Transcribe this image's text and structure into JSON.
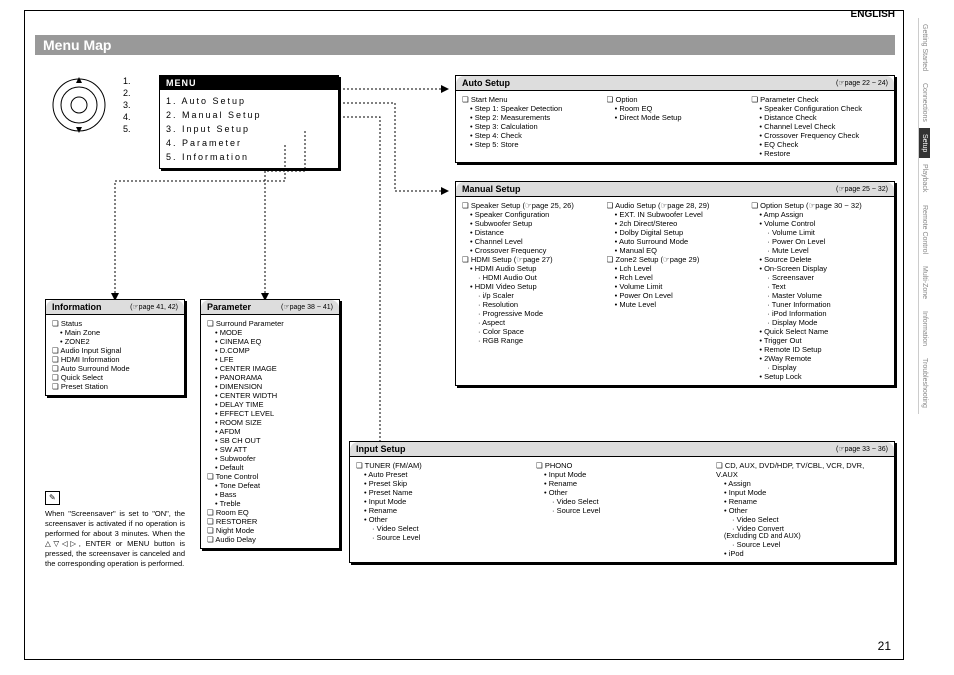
{
  "header": {
    "language": "ENGLISH",
    "title": "Menu Map",
    "page_number": "21"
  },
  "dial_numbers": [
    "1.",
    "2.",
    "3.",
    "4.",
    "5."
  ],
  "menu_box": {
    "header": "MENU",
    "items": [
      "1. Auto Setup",
      "2. Manual Setup",
      "3. Input Setup",
      "4. Parameter",
      "5. Information"
    ]
  },
  "cards": {
    "auto": {
      "title": "Auto Setup",
      "page": "(☞page 22 ~ 24)",
      "cols": [
        [
          {
            "t": "sq",
            "v": "Start Menu"
          },
          {
            "t": "b1",
            "v": "Step 1: Speaker Detection"
          },
          {
            "t": "b1",
            "v": "Step 2: Measurements"
          },
          {
            "t": "b1",
            "v": "Step 3: Calculation"
          },
          {
            "t": "b1",
            "v": "Step 4: Check"
          },
          {
            "t": "b1",
            "v": "Step 5: Store"
          }
        ],
        [
          {
            "t": "sq",
            "v": "Option"
          },
          {
            "t": "b1",
            "v": "Room EQ"
          },
          {
            "t": "b1",
            "v": "Direct Mode Setup"
          }
        ],
        [
          {
            "t": "sq",
            "v": "Parameter Check"
          },
          {
            "t": "b1",
            "v": "Speaker Configuration Check"
          },
          {
            "t": "b1",
            "v": "Distance Check"
          },
          {
            "t": "b1",
            "v": "Channel Level Check"
          },
          {
            "t": "b1",
            "v": "Crossover Frequency Check"
          },
          {
            "t": "b1",
            "v": "EQ Check"
          },
          {
            "t": "b1",
            "v": "Restore"
          }
        ]
      ]
    },
    "manual": {
      "title": "Manual Setup",
      "page": "(☞page 25 ~ 32)",
      "cols": [
        [
          {
            "t": "sq",
            "v": "Speaker Setup (☞page 25, 26)"
          },
          {
            "t": "b1",
            "v": "Speaker Configuration"
          },
          {
            "t": "b1",
            "v": "Subwoofer Setup"
          },
          {
            "t": "b1",
            "v": "Distance"
          },
          {
            "t": "b1",
            "v": "Channel Level"
          },
          {
            "t": "b1",
            "v": "Crossover Frequency"
          },
          {
            "t": "sq",
            "v": "HDMI Setup (☞page 27)"
          },
          {
            "t": "b1",
            "v": "HDMI Audio Setup"
          },
          {
            "t": "b2",
            "v": "HDMI Audio Out"
          },
          {
            "t": "b1",
            "v": "HDMI Video Setup"
          },
          {
            "t": "b2",
            "v": "i/p Scaler"
          },
          {
            "t": "b2",
            "v": "Resolution"
          },
          {
            "t": "b2",
            "v": "Progressive Mode"
          },
          {
            "t": "b2",
            "v": "Aspect"
          },
          {
            "t": "b2",
            "v": "Color Space"
          },
          {
            "t": "b2",
            "v": "RGB Range"
          }
        ],
        [
          {
            "t": "sq",
            "v": "Audio Setup (☞page 28, 29)"
          },
          {
            "t": "b1",
            "v": "EXT. IN Subwoofer Level"
          },
          {
            "t": "b1",
            "v": "2ch Direct/Stereo"
          },
          {
            "t": "b1",
            "v": "Dolby Digital Setup"
          },
          {
            "t": "b1",
            "v": "Auto Surround Mode"
          },
          {
            "t": "b1",
            "v": "Manual EQ"
          },
          {
            "t": "sq",
            "v": "Zone2 Setup (☞page 29)"
          },
          {
            "t": "b1",
            "v": "Lch Level"
          },
          {
            "t": "b1",
            "v": "Rch Level"
          },
          {
            "t": "b1",
            "v": "Volume Limit"
          },
          {
            "t": "b1",
            "v": "Power On Level"
          },
          {
            "t": "b1",
            "v": "Mute Level"
          }
        ],
        [
          {
            "t": "sq",
            "v": "Option Setup (☞page 30 ~ 32)"
          },
          {
            "t": "b1",
            "v": "Amp Assign"
          },
          {
            "t": "b1",
            "v": "Volume Control"
          },
          {
            "t": "b2",
            "v": "Volume Limit"
          },
          {
            "t": "b2",
            "v": "Power On Level"
          },
          {
            "t": "b2",
            "v": "Mute Level"
          },
          {
            "t": "b1",
            "v": "Source Delete"
          },
          {
            "t": "b1",
            "v": "On-Screen Display"
          },
          {
            "t": "b2",
            "v": "Screensaver"
          },
          {
            "t": "b2",
            "v": "Text"
          },
          {
            "t": "b2",
            "v": "Master Volume"
          },
          {
            "t": "b2",
            "v": "Tuner Information"
          },
          {
            "t": "b2",
            "v": "iPod Information"
          },
          {
            "t": "b2",
            "v": "Display Mode"
          },
          {
            "t": "b1",
            "v": "Quick Select Name"
          },
          {
            "t": "b1",
            "v": "Trigger Out"
          },
          {
            "t": "b1",
            "v": "Remote ID Setup"
          },
          {
            "t": "b1",
            "v": "2Way Remote"
          },
          {
            "t": "b2",
            "v": "Display"
          },
          {
            "t": "b1",
            "v": "Setup Lock"
          }
        ]
      ]
    },
    "input": {
      "title": "Input Setup",
      "page": "(☞page 33 ~ 36)",
      "cols": [
        [
          {
            "t": "sq",
            "v": "TUNER (FM/AM)"
          },
          {
            "t": "b1",
            "v": "Auto Preset"
          },
          {
            "t": "b1",
            "v": "Preset Skip"
          },
          {
            "t": "b1",
            "v": "Preset Name"
          },
          {
            "t": "b1",
            "v": "Input Mode"
          },
          {
            "t": "b1",
            "v": "Rename"
          },
          {
            "t": "b1",
            "v": "Other"
          },
          {
            "t": "b2",
            "v": "Video Select"
          },
          {
            "t": "b2",
            "v": "Source Level"
          }
        ],
        [
          {
            "t": "sq",
            "v": "PHONO"
          },
          {
            "t": "b1",
            "v": "Input Mode"
          },
          {
            "t": "b1",
            "v": "Rename"
          },
          {
            "t": "b1",
            "v": "Other"
          },
          {
            "t": "b2",
            "v": "Video Select"
          },
          {
            "t": "b2",
            "v": "Source Level"
          }
        ],
        [
          {
            "t": "sq",
            "v": "CD, AUX, DVD/HDP, TV/CBL, VCR, DVR, V.AUX"
          },
          {
            "t": "b1",
            "v": "Assign"
          },
          {
            "t": "b1",
            "v": "Input Mode"
          },
          {
            "t": "b1",
            "v": "Rename"
          },
          {
            "t": "b1",
            "v": "Other"
          },
          {
            "t": "b2",
            "v": "Video Select"
          },
          {
            "t": "b2",
            "v": "Video Convert"
          },
          {
            "t": "plain",
            "v": "(Excluding CD and AUX)"
          },
          {
            "t": "b2",
            "v": "Source Level"
          },
          {
            "t": "b1",
            "v": "iPod"
          }
        ]
      ]
    },
    "info": {
      "title": "Information",
      "page": "(☞page 41, 42)",
      "cols": [
        [
          {
            "t": "sq",
            "v": "Status"
          },
          {
            "t": "b1",
            "v": "Main Zone"
          },
          {
            "t": "b1",
            "v": "ZONE2"
          },
          {
            "t": "sq",
            "v": "Audio Input Signal"
          },
          {
            "t": "sq",
            "v": "HDMI Information"
          },
          {
            "t": "sq",
            "v": "Auto Surround Mode"
          },
          {
            "t": "sq",
            "v": "Quick Select"
          },
          {
            "t": "sq",
            "v": "Preset Station"
          }
        ]
      ]
    },
    "param": {
      "title": "Parameter",
      "page": "(☞page 38 ~ 41)",
      "cols": [
        [
          {
            "t": "sq",
            "v": "Surround Parameter"
          },
          {
            "t": "b1",
            "v": "MODE"
          },
          {
            "t": "b1",
            "v": "CINEMA EQ"
          },
          {
            "t": "b1",
            "v": "D.COMP"
          },
          {
            "t": "b1",
            "v": "LFE"
          },
          {
            "t": "b1",
            "v": "CENTER IMAGE"
          },
          {
            "t": "b1",
            "v": "PANORAMA"
          },
          {
            "t": "b1",
            "v": "DIMENSION"
          },
          {
            "t": "b1",
            "v": "CENTER WIDTH"
          },
          {
            "t": "b1",
            "v": "DELAY TIME"
          },
          {
            "t": "b1",
            "v": "EFFECT LEVEL"
          },
          {
            "t": "b1",
            "v": "ROOM SIZE"
          },
          {
            "t": "b1",
            "v": "AFDM"
          },
          {
            "t": "b1",
            "v": "SB CH OUT"
          },
          {
            "t": "b1",
            "v": "SW ATT"
          },
          {
            "t": "b1",
            "v": "Subwoofer"
          },
          {
            "t": "b1",
            "v": "Default"
          },
          {
            "t": "sq",
            "v": "Tone Control"
          },
          {
            "t": "b1",
            "v": "Tone Defeat"
          },
          {
            "t": "b1",
            "v": "Bass"
          },
          {
            "t": "b1",
            "v": "Treble"
          },
          {
            "t": "sq",
            "v": "Room EQ"
          },
          {
            "t": "sq",
            "v": "RESTORER"
          },
          {
            "t": "sq",
            "v": "Night Mode"
          },
          {
            "t": "sq",
            "v": "Audio Delay"
          }
        ]
      ]
    }
  },
  "note": {
    "icon": "✎",
    "text": "When \"Screensaver\" is set to \"ON\", the screensaver is activated if no operation is performed for about 3 minutes.\nWhen the △▽◁▷, ENTER or MENU button is pressed, the screensaver is canceled and the corresponding operation is performed."
  },
  "side_tabs": [
    {
      "label": "Getting Started",
      "active": false
    },
    {
      "label": "Connections",
      "active": false
    },
    {
      "label": "Setup",
      "active": true
    },
    {
      "label": "Playback",
      "active": false
    },
    {
      "label": "Remote Control",
      "active": false
    },
    {
      "label": "Multi-Zone",
      "active": false
    },
    {
      "label": "Information",
      "active": false
    },
    {
      "label": "Troubleshooting",
      "active": false
    }
  ]
}
